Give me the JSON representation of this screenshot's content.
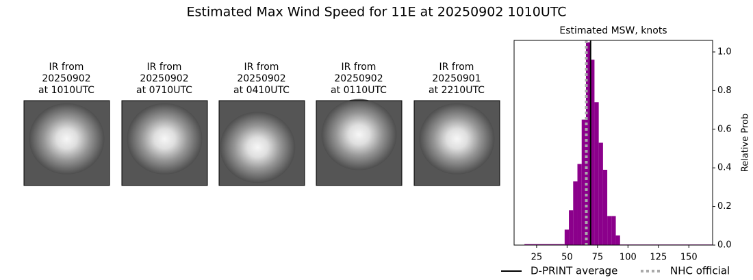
{
  "title": "Estimated Max Wind Speed for 11E at 20250902 1010UTC",
  "panels": [
    {
      "label": "IR from",
      "date": "20250902",
      "time": "at 1010UTC"
    },
    {
      "label": "IR from",
      "date": "20250902",
      "time": "at 0710UTC"
    },
    {
      "label": "IR from",
      "date": "20250902",
      "time": "at 0410UTC"
    },
    {
      "label": "IR from",
      "date": "20250902",
      "time": "at 0110UTC"
    },
    {
      "label": "IR from",
      "date": "20250901",
      "time": "at 2210UTC"
    }
  ],
  "chart_data": {
    "type": "histogram",
    "title": "Estimated MSW, knots",
    "y_label": "Relative Prob",
    "bins": [
      15,
      48,
      51.5,
      55,
      58.5,
      62,
      65.5,
      69,
      72.5,
      76,
      79.5,
      83,
      86.5,
      90,
      93.5,
      169
    ],
    "values": [
      0.005,
      0.08,
      0.18,
      0.33,
      0.42,
      0.65,
      1.05,
      0.96,
      0.74,
      0.53,
      0.39,
      0.15,
      0.15,
      0.05,
      0.003
    ],
    "color": "#8b008b",
    "xlim": [
      6.5,
      169.5
    ],
    "ylim": [
      0,
      1.06
    ],
    "xticks": [
      25,
      50,
      75,
      100,
      125,
      150
    ],
    "yticks": [
      {
        "value": 0,
        "label": "0.0"
      },
      {
        "value": 0.2,
        "label": "0.2"
      },
      {
        "value": 0.4,
        "label": "0.4"
      },
      {
        "value": 0.6,
        "label": "0.6"
      },
      {
        "value": 0.8,
        "label": "0.8"
      },
      {
        "value": 1.0,
        "label": "1.0"
      }
    ],
    "lines": [
      {
        "name": "D-PRINT average",
        "value": 69.3,
        "color": "#000000",
        "dashed": false
      },
      {
        "name": "NHC official",
        "value": 65.8,
        "color": "#aaaaaa",
        "dashed": true
      }
    ]
  }
}
